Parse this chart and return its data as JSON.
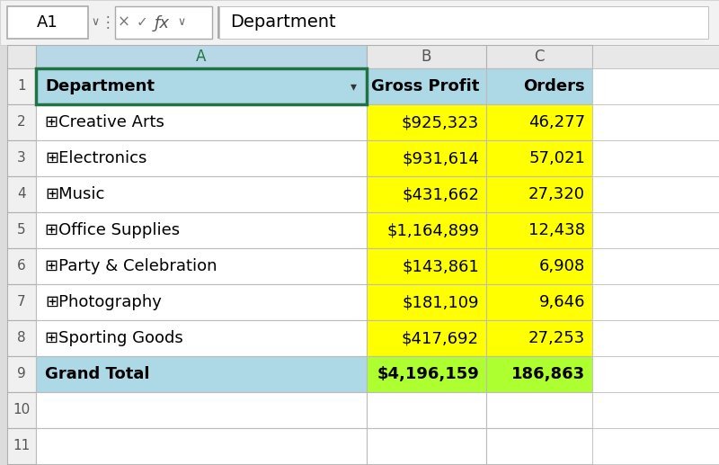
{
  "formula_bar_cell": "A1",
  "formula_bar_text": "Department",
  "col_headers": [
    "A",
    "B",
    "C"
  ],
  "headers": [
    "Department",
    "Gross Profit",
    "Orders"
  ],
  "departments": [
    "⊞Creative Arts",
    "⊞Electronics",
    "⊞Music",
    "⊞Office Supplies",
    "⊞Party & Celebration",
    "⊞Photography",
    "⊞Sporting Goods"
  ],
  "gross_profit": [
    "$925,323",
    "$931,614",
    "$431,662",
    "$1,164,899",
    "$143,861",
    "$181,109",
    "$417,692"
  ],
  "orders": [
    "46,277",
    "57,021",
    "27,320",
    "12,438",
    "6,908",
    "9,646",
    "27,253"
  ],
  "grand_total_label": "Grand Total",
  "grand_total_profit": "$4,196,159",
  "grand_total_orders": "186,863",
  "color_header_a": "#ADD8E6",
  "color_header_bc": "#ADD8E6",
  "color_data_b": "#FFFF00",
  "color_data_c": "#FFFF00",
  "color_grand_total_a": "#ADD8E6",
  "color_grand_total_bc": "#ADFF2F",
  "color_white": "#FFFFFF",
  "color_bg": "#F0F0F0",
  "color_row_header_bg": "#F0F0F0",
  "color_selected_col": "#B8D8E8",
  "color_selected_border": "#217346",
  "color_grid": "#C0C0C0"
}
